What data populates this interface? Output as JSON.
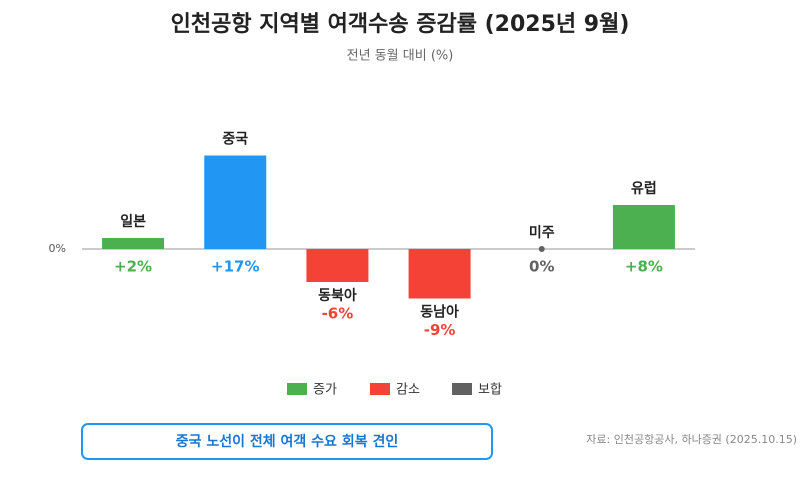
{
  "chart_data": {
    "type": "bar",
    "title": "인천공항 지역별 여객수송 증감률 (2025년 9월)",
    "subtitle": "전년 동월 대비 (%)",
    "categories": [
      "일본",
      "중국",
      "동북아",
      "동남아",
      "미주",
      "유럽"
    ],
    "values": [
      2,
      17,
      -6,
      -9,
      0,
      8
    ],
    "value_labels": [
      "+2%",
      "+17%",
      "-6%",
      "-9%",
      "0%",
      "+8%"
    ],
    "colors": [
      "#4caf50",
      "#2196f3",
      "#f44336",
      "#f44336",
      "#616161",
      "#4caf50"
    ],
    "ylim": [
      -20,
      20
    ],
    "yticks": [
      {
        "value": 0,
        "label": "0%"
      }
    ],
    "legend": [
      {
        "name": "증가",
        "color": "#4caf50"
      },
      {
        "name": "감소",
        "color": "#f44336"
      },
      {
        "name": "보합",
        "color": "#616161"
      }
    ],
    "annotation": "중국 노선이 전체 여객 수요 회복 견인",
    "source": "자료: 인천공항공사, 하나증권 (2025.10.15)"
  }
}
